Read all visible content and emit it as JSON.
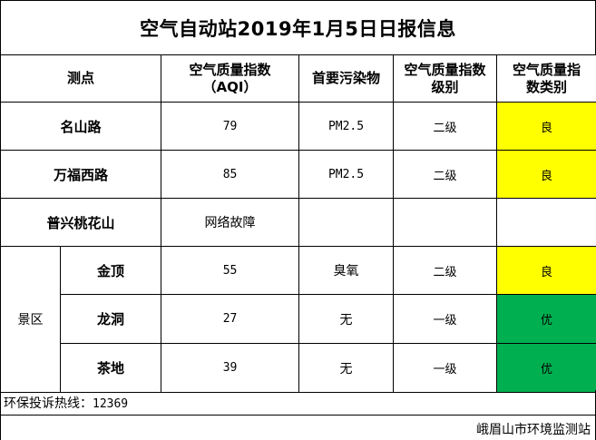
{
  "title": "空气自动站2019年1月5日日报信息",
  "headers": {
    "station": "测点",
    "aqi_line1": "空气质量指数",
    "aqi_line2": "（AQI）",
    "pollutant": "首要污染物",
    "level_line1": "空气质量指数",
    "level_line2": "级别",
    "category_line1": "空气质量指",
    "category_line2": "数类别"
  },
  "rows": [
    {
      "station": "名山路",
      "aqi": "79",
      "pollutant": "PM2.5",
      "level": "二级",
      "category": "良",
      "category_color": "#ffff00"
    },
    {
      "station": "万福西路",
      "aqi": "85",
      "pollutant": "PM2.5",
      "level": "二级",
      "category": "良",
      "category_color": "#ffff00"
    },
    {
      "station": "普兴桃花山",
      "aqi": "网络故障",
      "pollutant": "",
      "level": "",
      "category": "",
      "category_color": "#ffffff"
    }
  ],
  "scenic_area": {
    "group_label": "景区",
    "rows": [
      {
        "station": "金顶",
        "aqi": "55",
        "pollutant": "臭氧",
        "level": "二级",
        "category": "良",
        "category_color": "#ffff00"
      },
      {
        "station": "龙洞",
        "aqi": "27",
        "pollutant": "无",
        "level": "一级",
        "category": "优",
        "category_color": "#00b050"
      },
      {
        "station": "茶地",
        "aqi": "39",
        "pollutant": "无",
        "level": "一级",
        "category": "优",
        "category_color": "#00b050"
      }
    ]
  },
  "hotline": {
    "label": "环保投诉热线：",
    "number": "12369"
  },
  "issuer": "峨眉山市环境监测站"
}
